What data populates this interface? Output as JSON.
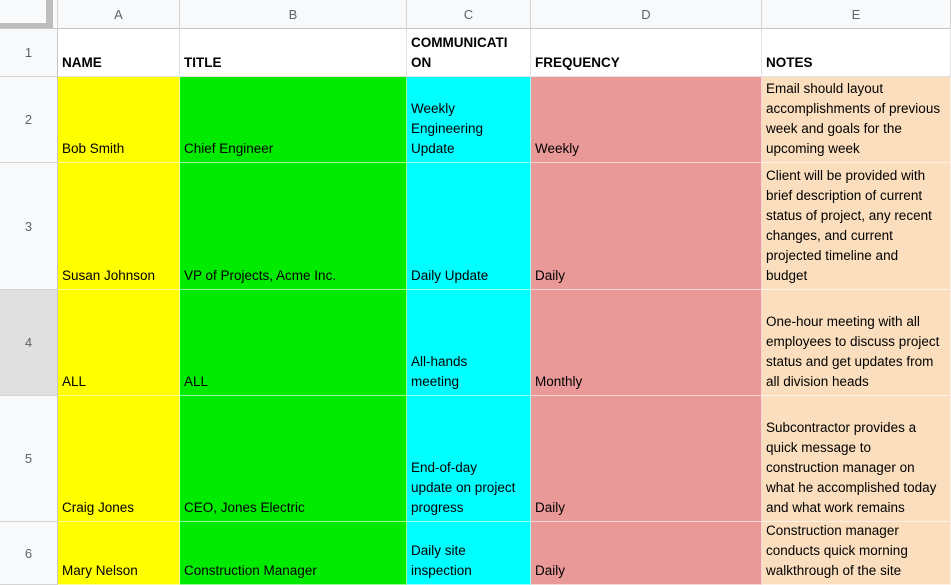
{
  "columns": [
    "A",
    "B",
    "C",
    "D",
    "E"
  ],
  "header_row": {
    "number": "1",
    "name": "NAME",
    "title": "TITLE",
    "communication": "COMMUNICATION",
    "frequency": "FREQUENCY",
    "notes": "NOTES"
  },
  "rows": [
    {
      "number": "2",
      "name": "Bob Smith",
      "title": "Chief Engineer",
      "communication": "Weekly Engineering Update",
      "frequency": "Weekly",
      "notes": "Email should layout accomplishments of previous week and goals for the upcoming week"
    },
    {
      "number": "3",
      "name": "Susan Johnson",
      "title": "VP of Projects, Acme Inc.",
      "communication": "Daily Update",
      "frequency": "Daily",
      "notes": "Client will be provided with brief description of current status of project, any recent changes, and current projected timeline and budget"
    },
    {
      "number": "4",
      "name": "ALL",
      "title": "ALL",
      "communication": "All-hands meeting",
      "frequency": "Monthly",
      "notes": "One-hour meeting with all employees to discuss project status and get updates from all division heads"
    },
    {
      "number": "5",
      "name": "Craig Jones",
      "title": "CEO, Jones Electric",
      "communication": "End-of-day update on project progress",
      "frequency": "Daily",
      "notes": "Subcontractor provides a quick message to construction manager on what he accomplished today and what work remains"
    },
    {
      "number": "6",
      "name": "Mary Nelson",
      "title": "Construction Manager",
      "communication": "Daily site inspection",
      "frequency": "Daily",
      "notes": "Construction manager conducts quick morning walkthrough of the site"
    }
  ],
  "colors": {
    "name_column": "#FFFF00",
    "title_column": "#00EB00",
    "communication_column": "#00FFFF",
    "frequency_column": "#EA9999",
    "notes_column": "#FBDEBD"
  }
}
